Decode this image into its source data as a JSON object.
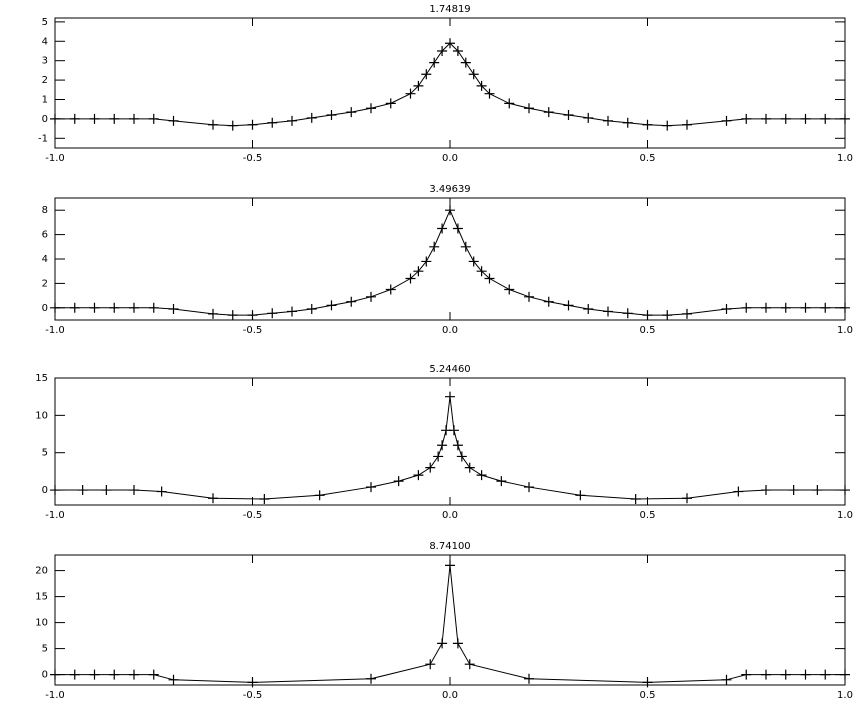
{
  "chart_data": [
    {
      "type": "line",
      "title": "1.74819",
      "color": "#000000",
      "x": [
        -1.0,
        -0.95,
        -0.9,
        -0.85,
        -0.8,
        -0.75,
        -0.7,
        -0.6,
        -0.55,
        -0.5,
        -0.45,
        -0.4,
        -0.35,
        -0.3,
        -0.25,
        -0.2,
        -0.15,
        -0.1,
        -0.08,
        -0.06,
        -0.04,
        -0.02,
        0,
        0.02,
        0.04,
        0.06,
        0.08,
        0.1,
        0.15,
        0.2,
        0.25,
        0.3,
        0.35,
        0.4,
        0.45,
        0.5,
        0.55,
        0.6,
        0.7,
        0.75,
        0.8,
        0.85,
        0.9,
        0.95,
        1.0
      ],
      "y": [
        0,
        0,
        0,
        0,
        0,
        0,
        -0.1,
        -0.3,
        -0.35,
        -0.3,
        -0.2,
        -0.1,
        0.05,
        0.2,
        0.35,
        0.55,
        0.8,
        1.3,
        1.7,
        2.3,
        2.9,
        3.5,
        3.9,
        3.5,
        2.9,
        2.3,
        1.7,
        1.3,
        0.8,
        0.55,
        0.35,
        0.2,
        0.05,
        -0.1,
        -0.2,
        -0.3,
        -0.35,
        -0.3,
        -0.1,
        0,
        0,
        0,
        0,
        0,
        0
      ],
      "xlim": [
        -1,
        1
      ],
      "ylim": [
        -1.5,
        5.2
      ],
      "xticks": [
        {
          "value": -1,
          "label": "-1.0"
        },
        {
          "value": -0.5,
          "label": "-0.5"
        },
        {
          "value": 0,
          "label": "0.0"
        },
        {
          "value": 0.5,
          "label": "0.5"
        },
        {
          "value": 1,
          "label": "1.0"
        }
      ],
      "yticks": [
        -1,
        0,
        1,
        2,
        3,
        4,
        5
      ]
    },
    {
      "type": "line",
      "title": "3.49639",
      "color": "#000000",
      "x": [
        -1.0,
        -0.95,
        -0.9,
        -0.85,
        -0.8,
        -0.75,
        -0.7,
        -0.6,
        -0.55,
        -0.5,
        -0.45,
        -0.4,
        -0.35,
        -0.3,
        -0.25,
        -0.2,
        -0.15,
        -0.1,
        -0.08,
        -0.06,
        -0.04,
        -0.02,
        0,
        0.02,
        0.04,
        0.06,
        0.08,
        0.1,
        0.15,
        0.2,
        0.25,
        0.3,
        0.35,
        0.4,
        0.45,
        0.5,
        0.55,
        0.6,
        0.7,
        0.75,
        0.8,
        0.85,
        0.9,
        0.95,
        1.0
      ],
      "y": [
        0,
        0,
        0,
        0,
        0,
        0,
        -0.1,
        -0.5,
        -0.6,
        -0.6,
        -0.45,
        -0.3,
        -0.1,
        0.2,
        0.5,
        0.9,
        1.5,
        2.4,
        3,
        3.8,
        5,
        6.5,
        8,
        6.5,
        5,
        3.8,
        3,
        2.4,
        1.5,
        0.9,
        0.5,
        0.2,
        -0.1,
        -0.3,
        -0.45,
        -0.6,
        -0.6,
        -0.5,
        -0.1,
        0,
        0,
        0,
        0,
        0,
        0
      ],
      "xlim": [
        -1,
        1
      ],
      "ylim": [
        -1,
        9
      ],
      "xticks": [
        {
          "value": -1,
          "label": "-1.0"
        },
        {
          "value": -0.5,
          "label": "-0.5"
        },
        {
          "value": 0,
          "label": "0.0"
        },
        {
          "value": 0.5,
          "label": "0.5"
        },
        {
          "value": 1,
          "label": "1.0"
        }
      ],
      "yticks": [
        0,
        2,
        4,
        6,
        8
      ]
    },
    {
      "type": "line",
      "title": "5.24460",
      "color": "#000000",
      "x": [
        -1.0,
        -0.93,
        -0.87,
        -0.8,
        -0.73,
        -0.6,
        -0.47,
        -0.33,
        -0.2,
        -0.13,
        -0.08,
        -0.05,
        -0.03,
        -0.02,
        -0.01,
        0,
        0.01,
        0.02,
        0.03,
        0.05,
        0.08,
        0.13,
        0.2,
        0.33,
        0.47,
        0.6,
        0.73,
        0.8,
        0.87,
        0.93,
        1.0
      ],
      "y": [
        0,
        0,
        0,
        0,
        -0.2,
        -1.1,
        -1.2,
        -0.7,
        0.4,
        1.2,
        2,
        3,
        4.5,
        6,
        8,
        12.5,
        8,
        6,
        4.5,
        3,
        2,
        1.2,
        0.4,
        -0.7,
        -1.2,
        -1.1,
        -0.2,
        0,
        0,
        0,
        0
      ],
      "xlim": [
        -1,
        1
      ],
      "ylim": [
        -2,
        15
      ],
      "xticks": [
        {
          "value": -1,
          "label": "-1.0"
        },
        {
          "value": -0.5,
          "label": "-0.5"
        },
        {
          "value": 0,
          "label": "0.0"
        },
        {
          "value": 0.5,
          "label": "0.5"
        },
        {
          "value": 1,
          "label": "1.0"
        }
      ],
      "yticks": [
        0,
        5,
        10,
        15
      ]
    },
    {
      "type": "line",
      "title": "8.74100",
      "color": "#000000",
      "x": [
        -1.0,
        -0.95,
        -0.9,
        -0.85,
        -0.8,
        -0.75,
        -0.7,
        -0.5,
        -0.2,
        -0.05,
        -0.02,
        0,
        0.02,
        0.05,
        0.2,
        0.5,
        0.7,
        0.75,
        0.8,
        0.85,
        0.9,
        0.95,
        1.0
      ],
      "y": [
        0,
        0,
        0,
        0,
        0,
        0,
        -1,
        -1.5,
        -0.8,
        2,
        6,
        21,
        6,
        2,
        -0.8,
        -1.5,
        -1,
        0,
        0,
        0,
        0,
        0,
        0
      ],
      "xlim": [
        -1,
        1
      ],
      "ylim": [
        -2,
        23
      ],
      "xticks": [
        {
          "value": -1,
          "label": "-1.0"
        },
        {
          "value": -0.5,
          "label": "-0.5"
        },
        {
          "value": 0,
          "label": "0.0"
        },
        {
          "value": 0.5,
          "label": "0.5"
        },
        {
          "value": 1,
          "label": "1.0"
        }
      ],
      "yticks": [
        0,
        5,
        10,
        15,
        20
      ]
    }
  ]
}
